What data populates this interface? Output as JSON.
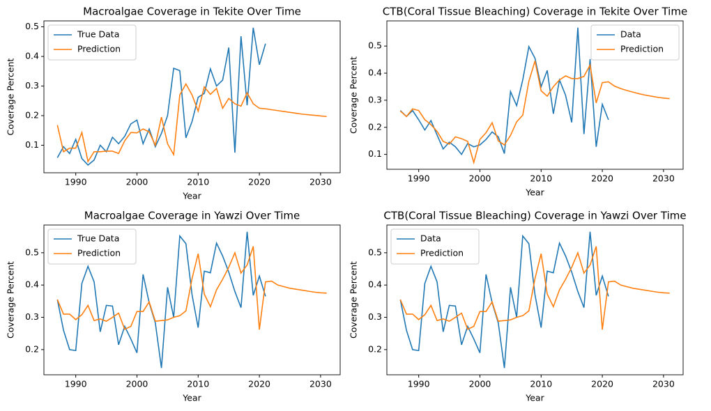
{
  "chart_data": [
    {
      "type": "line",
      "title": "Macroalgae Coverage in Tekite Over Time",
      "x_label": "Year",
      "y_label": "Coverage Percent",
      "x": [
        1987,
        1988,
        1989,
        1990,
        1991,
        1992,
        1993,
        1994,
        1995,
        1996,
        1997,
        1998,
        1999,
        2000,
        2001,
        2002,
        2003,
        2004,
        2005,
        2006,
        2007,
        2008,
        2009,
        2010,
        2011,
        2012,
        2013,
        2014,
        2015,
        2016,
        2017,
        2018,
        2019,
        2020,
        2021,
        2022,
        2023,
        2024,
        2025,
        2026,
        2027,
        2028,
        2029,
        2030,
        2031
      ],
      "series": [
        {
          "name": "True Data",
          "color": "#1f77b4",
          "values": [
            0.058,
            0.095,
            0.072,
            0.12,
            0.055,
            0.033,
            0.05,
            0.1,
            0.078,
            0.127,
            0.105,
            0.13,
            0.172,
            0.185,
            0.105,
            0.155,
            0.095,
            0.14,
            0.2,
            0.36,
            0.352,
            0.125,
            0.18,
            0.262,
            0.275,
            0.358,
            0.3,
            0.32,
            0.43,
            0.075,
            0.468,
            0.235,
            0.497,
            0.372,
            0.443,
            null,
            null,
            null,
            null,
            null,
            null,
            null,
            null,
            null,
            null
          ]
        },
        {
          "name": "Prediction",
          "color": "#ff7f0e",
          "values": [
            0.168,
            0.078,
            0.09,
            0.09,
            0.143,
            0.045,
            0.078,
            0.078,
            0.08,
            0.08,
            0.072,
            0.115,
            0.143,
            0.142,
            0.155,
            0.145,
            0.1,
            0.195,
            0.105,
            0.068,
            0.27,
            0.307,
            0.27,
            0.215,
            0.297,
            0.272,
            0.292,
            0.225,
            0.258,
            0.24,
            0.232,
            0.277,
            0.24,
            0.225,
            0.223,
            0.22,
            0.217,
            0.214,
            0.211,
            0.208,
            0.205,
            0.203,
            0.201,
            0.199,
            0.197
          ]
        }
      ],
      "xlim": [
        1984.8,
        2033.2
      ],
      "ylim": [
        0.007,
        0.52
      ],
      "xticks": [
        1990,
        2000,
        2010,
        2020,
        2030
      ],
      "yticks": [
        0.1,
        0.2,
        0.3,
        0.4,
        0.5
      ],
      "legend": "upper left"
    },
    {
      "type": "line",
      "title": "CTB(Coral Tissue Bleaching) Coverage in Tekite Over Time",
      "x_label": "Year",
      "y_label": "Coverage Percent",
      "x": [
        1987,
        1988,
        1989,
        1990,
        1991,
        1992,
        1993,
        1994,
        1995,
        1996,
        1997,
        1998,
        1999,
        2000,
        2001,
        2002,
        2003,
        2004,
        2005,
        2006,
        2007,
        2008,
        2009,
        2010,
        2011,
        2012,
        2013,
        2014,
        2015,
        2016,
        2017,
        2018,
        2019,
        2020,
        2021,
        2022,
        2023,
        2024,
        2025,
        2026,
        2027,
        2028,
        2029,
        2030,
        2031
      ],
      "series": [
        {
          "name": "Data",
          "color": "#1f77b4",
          "values": [
            0.262,
            0.24,
            0.262,
            0.228,
            0.19,
            0.225,
            0.172,
            0.12,
            0.145,
            0.128,
            0.1,
            0.14,
            0.128,
            0.135,
            0.155,
            0.183,
            0.165,
            0.103,
            0.332,
            0.28,
            0.375,
            0.498,
            0.455,
            0.35,
            0.41,
            0.25,
            0.375,
            0.318,
            0.218,
            0.568,
            0.175,
            0.452,
            0.128,
            0.285,
            0.228,
            null,
            null,
            null,
            null,
            null,
            null,
            null,
            null,
            null,
            null
          ]
        },
        {
          "name": "Prediction",
          "color": "#ff7f0e",
          "values": [
            0.26,
            0.24,
            0.268,
            0.262,
            0.228,
            0.21,
            0.185,
            0.148,
            0.138,
            0.165,
            0.158,
            0.148,
            0.07,
            0.155,
            0.18,
            0.217,
            0.15,
            0.135,
            0.17,
            0.22,
            0.245,
            0.37,
            0.445,
            0.335,
            0.315,
            0.35,
            0.375,
            0.39,
            0.38,
            0.38,
            0.388,
            0.43,
            0.29,
            0.365,
            0.368,
            0.352,
            0.343,
            0.336,
            0.33,
            0.324,
            0.319,
            0.315,
            0.311,
            0.308,
            0.306
          ]
        }
      ],
      "xlim": [
        1984.8,
        2033.2
      ],
      "ylim": [
        0.045,
        0.593
      ],
      "xticks": [
        1990,
        2000,
        2010,
        2020,
        2030
      ],
      "yticks": [
        0.1,
        0.2,
        0.3,
        0.4,
        0.5
      ],
      "legend": "upper right"
    },
    {
      "type": "line",
      "title": "Macroalgae Coverage in Yawzi Over Time",
      "x_label": "Year",
      "y_label": "Coverage Percent",
      "x": [
        1987,
        1988,
        1989,
        1990,
        1991,
        1992,
        1993,
        1994,
        1995,
        1996,
        1997,
        1998,
        1999,
        2000,
        2001,
        2002,
        2003,
        2004,
        2005,
        2006,
        2007,
        2008,
        2009,
        2010,
        2011,
        2012,
        2013,
        2014,
        2015,
        2016,
        2017,
        2018,
        2019,
        2020,
        2021,
        2022,
        2023,
        2024,
        2025,
        2026,
        2027,
        2028,
        2029,
        2030,
        2031
      ],
      "series": [
        {
          "name": "True Data",
          "color": "#1f77b4",
          "values": [
            0.355,
            0.26,
            0.2,
            0.197,
            0.405,
            0.458,
            0.41,
            0.255,
            0.337,
            0.335,
            0.215,
            0.272,
            0.233,
            0.19,
            0.433,
            0.345,
            0.283,
            0.143,
            0.393,
            0.3,
            0.552,
            0.528,
            0.37,
            0.268,
            0.443,
            0.438,
            0.53,
            0.49,
            0.44,
            0.38,
            0.33,
            0.565,
            0.368,
            0.428,
            0.365,
            null,
            null,
            null,
            null,
            null,
            null,
            null,
            null,
            null,
            null
          ]
        },
        {
          "name": "Prediction",
          "color": "#ff7f0e",
          "values": [
            0.355,
            0.31,
            0.31,
            0.293,
            0.308,
            0.337,
            0.29,
            0.295,
            0.288,
            0.3,
            0.313,
            0.263,
            0.272,
            0.318,
            0.318,
            0.348,
            0.288,
            0.29,
            0.292,
            0.3,
            0.305,
            0.32,
            0.42,
            0.497,
            0.372,
            0.333,
            0.385,
            0.418,
            0.455,
            0.5,
            0.437,
            0.462,
            0.52,
            0.262,
            0.41,
            0.412,
            0.4,
            0.395,
            0.39,
            0.387,
            0.384,
            0.381,
            0.378,
            0.376,
            0.375
          ]
        }
      ],
      "xlim": [
        1984.8,
        2033.2
      ],
      "ylim": [
        0.122,
        0.586
      ],
      "xticks": [
        1990,
        2000,
        2010,
        2020,
        2030
      ],
      "yticks": [
        0.2,
        0.3,
        0.4,
        0.5
      ],
      "legend": "upper left"
    },
    {
      "type": "line",
      "title": "CTB(Coral Tissue Bleaching) Coverage in Yawzi Over Time",
      "x_label": "Year",
      "y_label": "Coverage Percent",
      "x": [
        1987,
        1988,
        1989,
        1990,
        1991,
        1992,
        1993,
        1994,
        1995,
        1996,
        1997,
        1998,
        1999,
        2000,
        2001,
        2002,
        2003,
        2004,
        2005,
        2006,
        2007,
        2008,
        2009,
        2010,
        2011,
        2012,
        2013,
        2014,
        2015,
        2016,
        2017,
        2018,
        2019,
        2020,
        2021,
        2022,
        2023,
        2024,
        2025,
        2026,
        2027,
        2028,
        2029,
        2030,
        2031
      ],
      "series": [
        {
          "name": "Data",
          "color": "#1f77b4",
          "values": [
            0.355,
            0.26,
            0.2,
            0.197,
            0.405,
            0.458,
            0.41,
            0.255,
            0.337,
            0.335,
            0.215,
            0.272,
            0.233,
            0.19,
            0.433,
            0.345,
            0.283,
            0.143,
            0.393,
            0.3,
            0.552,
            0.528,
            0.37,
            0.268,
            0.443,
            0.438,
            0.53,
            0.49,
            0.44,
            0.38,
            0.33,
            0.565,
            0.368,
            0.428,
            0.365,
            null,
            null,
            null,
            null,
            null,
            null,
            null,
            null,
            null,
            null
          ]
        },
        {
          "name": "Prediction",
          "color": "#ff7f0e",
          "values": [
            0.355,
            0.31,
            0.31,
            0.293,
            0.308,
            0.337,
            0.29,
            0.295,
            0.288,
            0.3,
            0.313,
            0.263,
            0.272,
            0.318,
            0.318,
            0.348,
            0.288,
            0.29,
            0.292,
            0.3,
            0.305,
            0.32,
            0.42,
            0.497,
            0.372,
            0.333,
            0.385,
            0.418,
            0.455,
            0.5,
            0.437,
            0.462,
            0.52,
            0.262,
            0.41,
            0.412,
            0.4,
            0.395,
            0.39,
            0.387,
            0.384,
            0.381,
            0.378,
            0.376,
            0.375
          ]
        }
      ],
      "xlim": [
        1984.8,
        2033.2
      ],
      "ylim": [
        0.122,
        0.586
      ],
      "xticks": [
        1990,
        2000,
        2010,
        2020,
        2030
      ],
      "yticks": [
        0.2,
        0.3,
        0.4,
        0.5
      ],
      "legend": "upper left"
    }
  ]
}
